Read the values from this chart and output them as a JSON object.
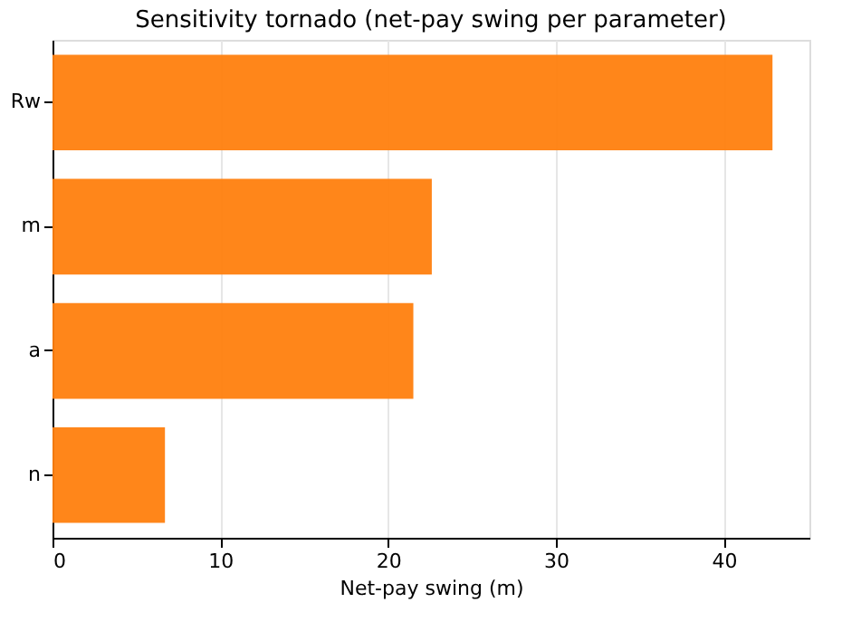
{
  "chart_data": {
    "type": "bar",
    "orientation": "horizontal",
    "title": "Sensitivity tornado (net-pay swing per parameter)",
    "xlabel": "Net-pay swing (m)",
    "categories": [
      "Rw",
      "m",
      "a",
      "n"
    ],
    "values": [
      42.9,
      22.6,
      21.5,
      6.7
    ],
    "color": "#ff7f0e",
    "xlim": [
      0,
      45.1
    ],
    "xticks": [
      0,
      10,
      20,
      30,
      40
    ],
    "grid": "x"
  }
}
